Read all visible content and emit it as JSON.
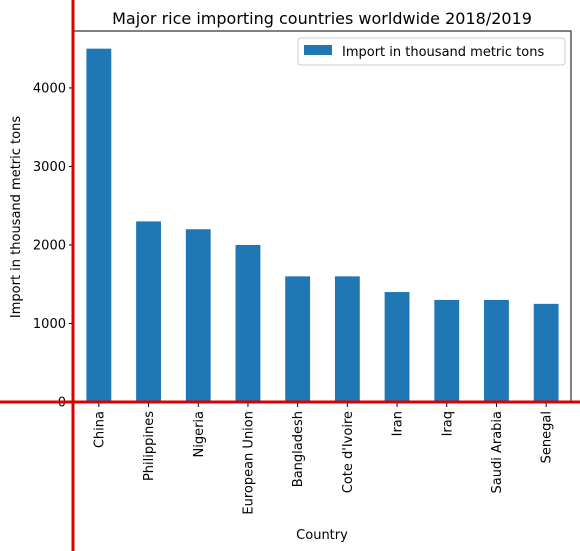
{
  "chart_data": {
    "type": "bar",
    "title": "Major rice importing countries worldwide 2018/2019",
    "xlabel": "Country",
    "ylabel": "Import in thousand metric tons",
    "categories": [
      "China",
      "Philippines",
      "Nigeria",
      "European Union",
      "Bangladesh",
      "Cote d'Ivoire",
      "Iran",
      "Iraq",
      "Saudi Arabia",
      "Senegal"
    ],
    "series": [
      {
        "name": "Import in thousand metric tons",
        "values": [
          4500,
          2300,
          2200,
          2000,
          1600,
          1600,
          1400,
          1300,
          1300,
          1250
        ]
      }
    ],
    "yticks": [
      0,
      1000,
      2000,
      3000,
      4000
    ],
    "ylim": [
      0,
      4725
    ],
    "grid": false,
    "legend": "top-right",
    "bar_color": "#1f77b4",
    "crosshair_color": "#dd0000"
  }
}
